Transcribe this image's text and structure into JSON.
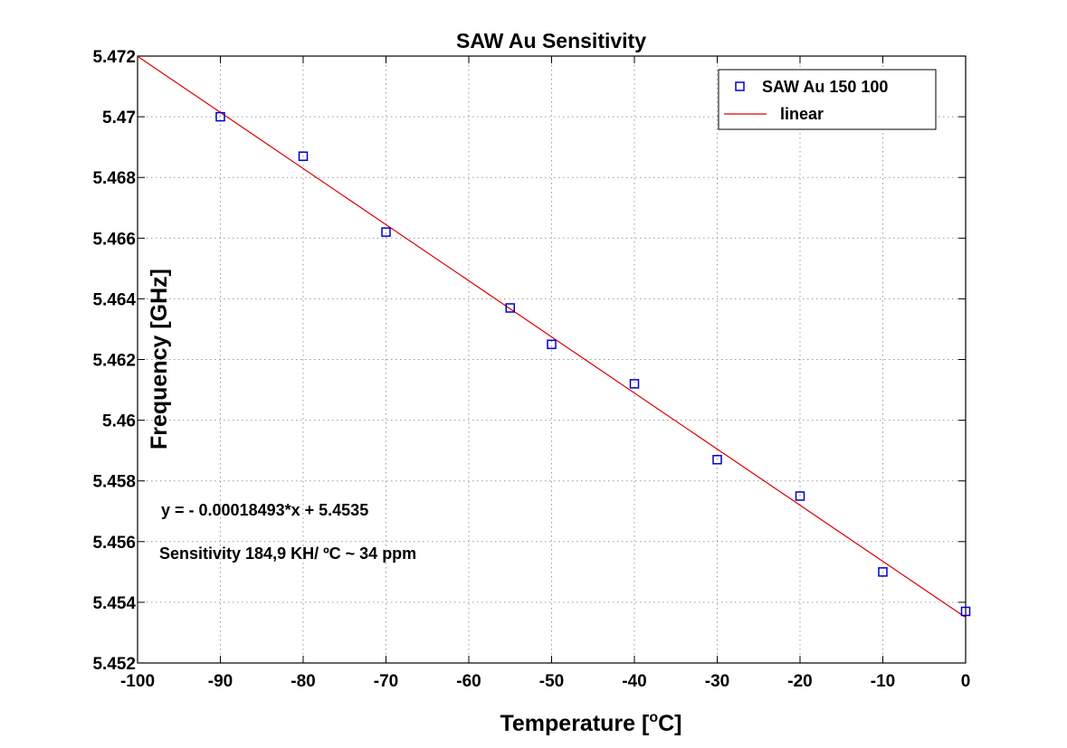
{
  "chart_data": {
    "type": "scatter",
    "title": "SAW Au Sensitivity",
    "xlabel": "Temperature",
    "xlabel_unit_open": "[",
    "xlabel_unit_sup": "o",
    "xlabel_unit_rest": "C]",
    "ylabel": "Frequency [GHz]",
    "xlim": [
      -100,
      0
    ],
    "ylim": [
      5.452,
      5.472
    ],
    "x_ticks": [
      -100,
      -90,
      -80,
      -70,
      -60,
      -50,
      -40,
      -30,
      -20,
      -10,
      0
    ],
    "x_tick_labels": [
      "-100",
      "-90",
      "-80",
      "-70",
      "-60",
      "-50",
      "-40",
      "-30",
      "-20",
      "-10",
      "0"
    ],
    "y_ticks": [
      5.452,
      5.454,
      5.456,
      5.458,
      5.46,
      5.462,
      5.464,
      5.466,
      5.468,
      5.47,
      5.472
    ],
    "y_tick_labels": [
      "5.452",
      "5.454",
      "5.456",
      "5.458",
      "5.46",
      "5.462",
      "5.464",
      "5.466",
      "5.468",
      "5.47",
      "5.472"
    ],
    "grid": true,
    "legend_position": "top-right",
    "series": [
      {
        "name": "SAW Au 150 100",
        "kind": "scatter",
        "marker": "square",
        "color": "#0000cc",
        "x": [
          -90,
          -80,
          -70,
          -55,
          -50,
          -40,
          -30,
          -20,
          -10,
          0
        ],
        "y": [
          5.47,
          5.4687,
          5.4662,
          5.4637,
          5.4625,
          5.4612,
          5.4587,
          5.4575,
          5.455,
          5.4537
        ]
      },
      {
        "name": "linear",
        "kind": "line",
        "color": "#dd0000",
        "slope": -0.00018493,
        "intercept": 5.4535,
        "x": [
          -100,
          0
        ]
      }
    ],
    "annotations": [
      "y = - 0.00018493*x + 5.4535",
      "Sensitivity 184,9 KH/ ºC ~ 34 ppm"
    ]
  }
}
